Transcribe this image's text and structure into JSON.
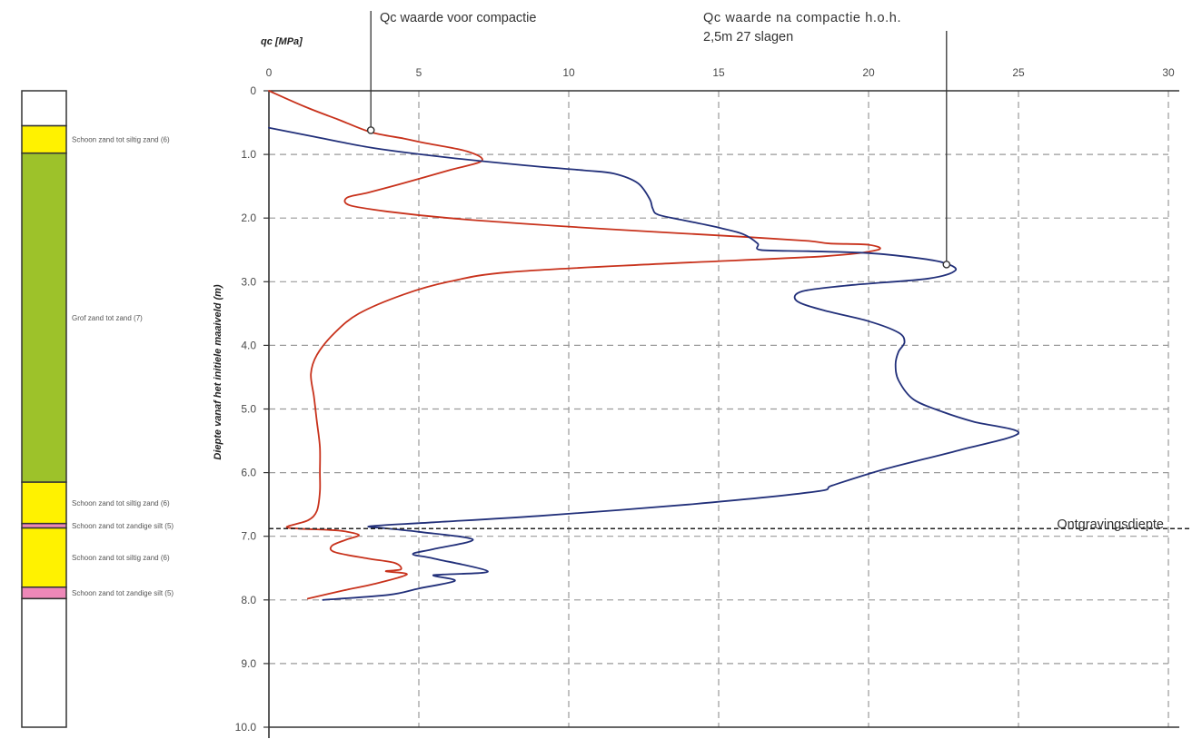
{
  "chart_data": {
    "type": "line",
    "xlabel": "qc [MPa]",
    "ylabel": "Diepte vanaf het initiele maaiveld (m)",
    "xlim": [
      0,
      30
    ],
    "ylim": [
      0,
      10
    ],
    "x_ticks": [
      "0",
      "5",
      "10",
      "15",
      "20",
      "25",
      "30"
    ],
    "y_ticks": [
      "0",
      "1.0",
      "2.0",
      "3.0",
      "4.0",
      "5.0",
      "6.0",
      "7.0",
      "8.0",
      "9.0",
      "10.0"
    ],
    "grid": true,
    "series": [
      {
        "color": "#c8321c",
        "points": [
          [
            0.0,
            0.0
          ],
          [
            1.2,
            0.25
          ],
          [
            2.3,
            0.45
          ],
          [
            3.4,
            0.65
          ],
          [
            4.5,
            0.75
          ],
          [
            5.2,
            0.82
          ],
          [
            6.6,
            0.95
          ],
          [
            7.1,
            1.1
          ],
          [
            6.0,
            1.25
          ],
          [
            4.5,
            1.45
          ],
          [
            3.3,
            1.6
          ],
          [
            2.6,
            1.68
          ],
          [
            2.7,
            1.8
          ],
          [
            4.0,
            1.9
          ],
          [
            6.0,
            2.0
          ],
          [
            9.5,
            2.12
          ],
          [
            13.0,
            2.22
          ],
          [
            16.0,
            2.3
          ],
          [
            18.0,
            2.36
          ],
          [
            18.7,
            2.4
          ],
          [
            20.0,
            2.42
          ],
          [
            20.3,
            2.5
          ],
          [
            18.5,
            2.6
          ],
          [
            13.0,
            2.72
          ],
          [
            8.0,
            2.85
          ],
          [
            6.0,
            3.0
          ],
          [
            4.5,
            3.2
          ],
          [
            3.0,
            3.5
          ],
          [
            2.2,
            3.8
          ],
          [
            1.6,
            4.15
          ],
          [
            1.4,
            4.45
          ],
          [
            1.5,
            4.8
          ],
          [
            1.6,
            5.2
          ],
          [
            1.7,
            5.6
          ],
          [
            1.7,
            6.0
          ],
          [
            1.7,
            6.3
          ],
          [
            1.6,
            6.6
          ],
          [
            1.3,
            6.75
          ],
          [
            0.6,
            6.85
          ],
          [
            1.0,
            6.88
          ],
          [
            2.0,
            6.9
          ],
          [
            2.5,
            6.92
          ],
          [
            3.0,
            6.98
          ],
          [
            2.6,
            7.05
          ],
          [
            2.1,
            7.15
          ],
          [
            2.2,
            7.25
          ],
          [
            3.3,
            7.35
          ],
          [
            4.2,
            7.42
          ],
          [
            4.4,
            7.52
          ],
          [
            3.9,
            7.55
          ],
          [
            4.6,
            7.6
          ],
          [
            3.5,
            7.75
          ],
          [
            2.5,
            7.85
          ],
          [
            1.3,
            7.98
          ]
        ]
      },
      {
        "color": "#22307a",
        "points": [
          [
            0.0,
            0.58
          ],
          [
            1.5,
            0.72
          ],
          [
            3.5,
            0.9
          ],
          [
            6.0,
            1.05
          ],
          [
            8.5,
            1.17
          ],
          [
            10.5,
            1.25
          ],
          [
            11.5,
            1.3
          ],
          [
            12.3,
            1.45
          ],
          [
            12.7,
            1.7
          ],
          [
            12.8,
            1.85
          ],
          [
            13.0,
            1.95
          ],
          [
            14.0,
            2.05
          ],
          [
            15.0,
            2.15
          ],
          [
            15.8,
            2.25
          ],
          [
            16.3,
            2.4
          ],
          [
            16.4,
            2.5
          ],
          [
            18.0,
            2.52
          ],
          [
            20.0,
            2.55
          ],
          [
            21.5,
            2.62
          ],
          [
            22.5,
            2.7
          ],
          [
            22.9,
            2.82
          ],
          [
            22.0,
            2.95
          ],
          [
            19.5,
            3.05
          ],
          [
            17.8,
            3.15
          ],
          [
            17.6,
            3.3
          ],
          [
            18.5,
            3.45
          ],
          [
            20.0,
            3.62
          ],
          [
            21.0,
            3.8
          ],
          [
            21.2,
            3.95
          ],
          [
            21.0,
            4.1
          ],
          [
            20.9,
            4.3
          ],
          [
            21.0,
            4.55
          ],
          [
            21.5,
            4.85
          ],
          [
            22.5,
            5.05
          ],
          [
            23.5,
            5.2
          ],
          [
            25.0,
            5.38
          ],
          [
            23.0,
            5.65
          ],
          [
            20.5,
            5.95
          ],
          [
            18.8,
            6.2
          ],
          [
            18.2,
            6.3
          ],
          [
            14.0,
            6.5
          ],
          [
            9.0,
            6.68
          ],
          [
            5.5,
            6.78
          ],
          [
            3.4,
            6.84
          ],
          [
            3.8,
            6.87
          ],
          [
            5.0,
            6.93
          ],
          [
            6.8,
            7.05
          ],
          [
            5.5,
            7.2
          ],
          [
            4.8,
            7.28
          ],
          [
            5.5,
            7.35
          ],
          [
            7.3,
            7.55
          ],
          [
            5.8,
            7.6
          ],
          [
            5.5,
            7.62
          ],
          [
            6.2,
            7.7
          ],
          [
            5.0,
            7.82
          ],
          [
            4.0,
            7.92
          ],
          [
            1.8,
            8.0
          ]
        ]
      }
    ],
    "annotations": {
      "voor": "Qc waarde voor compactie",
      "na_line1": "Qc waarde na compactie h.o.h.",
      "na_line2": "2,5m 27 slagen",
      "ontgraving": "Ontgravingsdiepte",
      "ontgraving_depth": 6.88,
      "voor_point": [
        3.4,
        0.62
      ],
      "na_point": [
        22.6,
        2.73
      ]
    }
  },
  "soil_column": {
    "layers": [
      {
        "top": 0.0,
        "bottom": 0.55,
        "color": "#ffffff",
        "label": ""
      },
      {
        "top": 0.55,
        "bottom": 0.98,
        "color": "#fff200",
        "label": "Schoon zand tot siltig zand (6)"
      },
      {
        "top": 0.98,
        "bottom": 6.15,
        "color": "#9dc22a",
        "label": "Grof zand tot zand (7)"
      },
      {
        "top": 6.15,
        "bottom": 6.8,
        "color": "#fff200",
        "label": "Schoon zand tot siltig zand (6)"
      },
      {
        "top": 6.8,
        "bottom": 6.87,
        "color": "#ee88b8",
        "label": "Schoon zand tot zandige silt (5)"
      },
      {
        "top": 6.87,
        "bottom": 7.8,
        "color": "#fff200",
        "label": "Schoon zand tot siltig zand (6)"
      },
      {
        "top": 7.8,
        "bottom": 7.98,
        "color": "#ee88b8",
        "label": "Schoon zand tot zandige silt (5)"
      },
      {
        "top": 7.98,
        "bottom": 10.0,
        "color": "#ffffff",
        "label": ""
      }
    ]
  }
}
